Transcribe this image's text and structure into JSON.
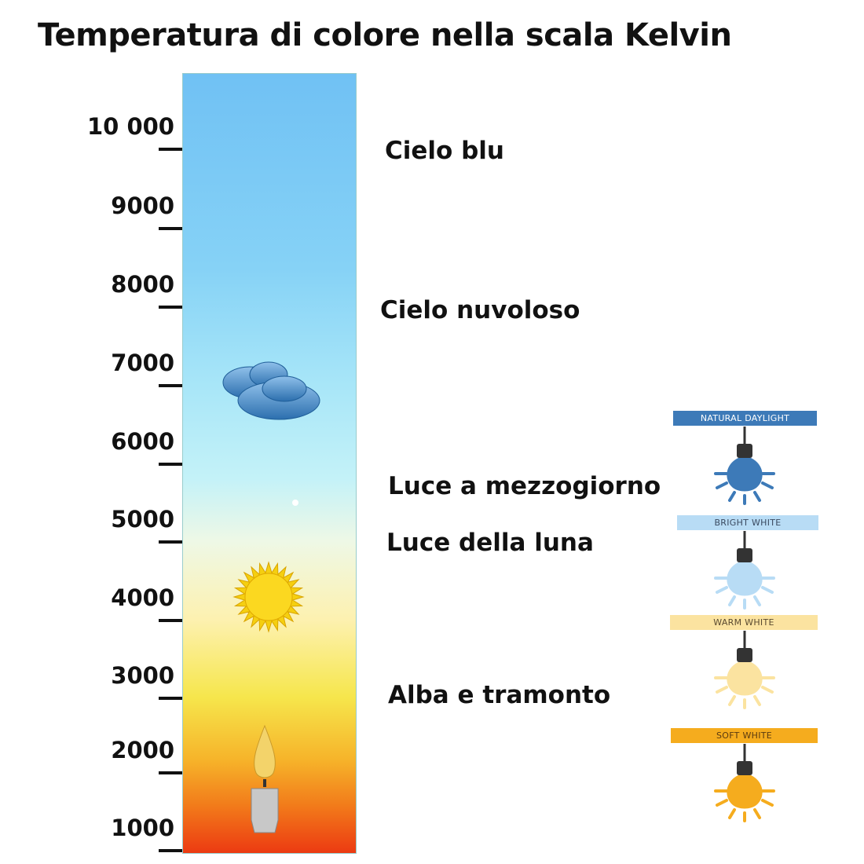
{
  "title": "Temperatura di colore nella scala Kelvin",
  "scale": {
    "ticks": [
      "10 000",
      "9000",
      "8000",
      "7000",
      "6000",
      "5000",
      "4000",
      "3000",
      "2000",
      "1000"
    ],
    "gradient_colors": [
      "#70c1f4",
      "#c4f2f8",
      "#fdf1b0",
      "#f6e64c",
      "#f6b42a",
      "#ec3a12"
    ]
  },
  "icons": [
    "cloud-icon",
    "sun-icon",
    "candle-icon"
  ],
  "descriptions": [
    "Cielo blu",
    "Cielo nuvoloso",
    "Luce a mezzogiorno",
    "Luce della luna",
    "Alba e tramonto"
  ],
  "bulbs": [
    {
      "label": "NATURAL DAYLIGHT",
      "banner_color": "#3d7ab8",
      "text_color": "#ffffff",
      "bulb_color": "#3d7ab8"
    },
    {
      "label": "BRIGHT WHITE",
      "banner_color": "#b8dcf5",
      "text_color": "#3a4a60",
      "bulb_color": "#b8dcf5"
    },
    {
      "label": "WARM WHITE",
      "banner_color": "#fbe3a0",
      "text_color": "#5a4a30",
      "bulb_color": "#fbe3a0"
    },
    {
      "label": "SOFT WHITE",
      "banner_color": "#f5ac1e",
      "text_color": "#5a3a10",
      "bulb_color": "#f5ac1e"
    }
  ]
}
